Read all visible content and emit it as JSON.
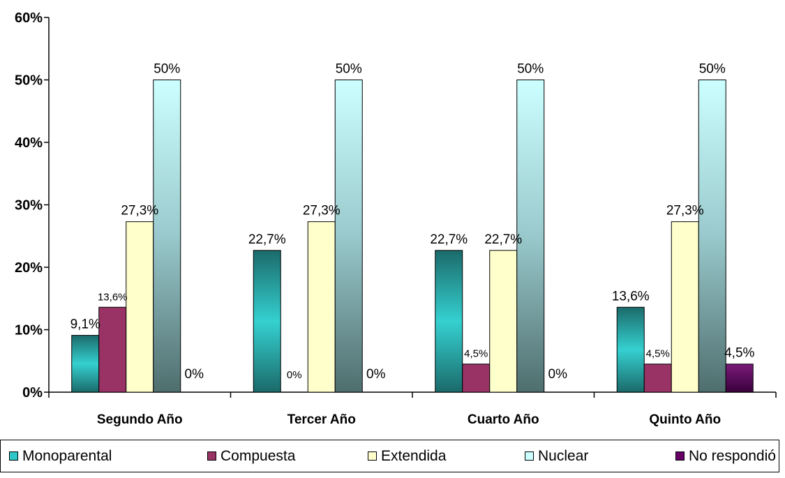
{
  "chart_data": {
    "type": "bar",
    "categories": [
      "Segundo Año",
      "Tercer Año",
      "Cuarto Año",
      "Quinto Año"
    ],
    "ylim": [
      0,
      60
    ],
    "yticks": [
      0,
      10,
      20,
      30,
      40,
      50,
      60
    ],
    "ytick_labels": [
      "0%",
      "10%",
      "20%",
      "30%",
      "40%",
      "50%",
      "60%"
    ],
    "grid": false,
    "legend_position": "bottom",
    "series": [
      {
        "name": "Monoparental",
        "values": [
          9.1,
          22.7,
          22.7,
          13.6
        ],
        "labels": [
          "9,1%",
          "22,7%",
          "22,7%",
          "13,6%"
        ],
        "color": "#2fc7c7"
      },
      {
        "name": "Compuesta",
        "values": [
          13.6,
          0,
          4.5,
          4.5
        ],
        "labels": [
          "13,6%",
          "0%",
          "4,5%",
          "4,5%"
        ],
        "color": "#993366"
      },
      {
        "name": "Extendida",
        "values": [
          27.3,
          27.3,
          22.7,
          27.3
        ],
        "labels": [
          "27,3%",
          "27,3%",
          "22,7%",
          "27,3%"
        ],
        "color": "#ffffcc"
      },
      {
        "name": "Nuclear",
        "values": [
          50,
          50,
          50,
          50
        ],
        "labels": [
          "50%",
          "50%",
          "50%",
          "50%"
        ],
        "color": "#ccffff"
      },
      {
        "name": "No respondió",
        "values": [
          0,
          0,
          0,
          4.5
        ],
        "labels": [
          "0%",
          "0%",
          "0%",
          "4,5%"
        ],
        "color": "#660066"
      }
    ]
  }
}
